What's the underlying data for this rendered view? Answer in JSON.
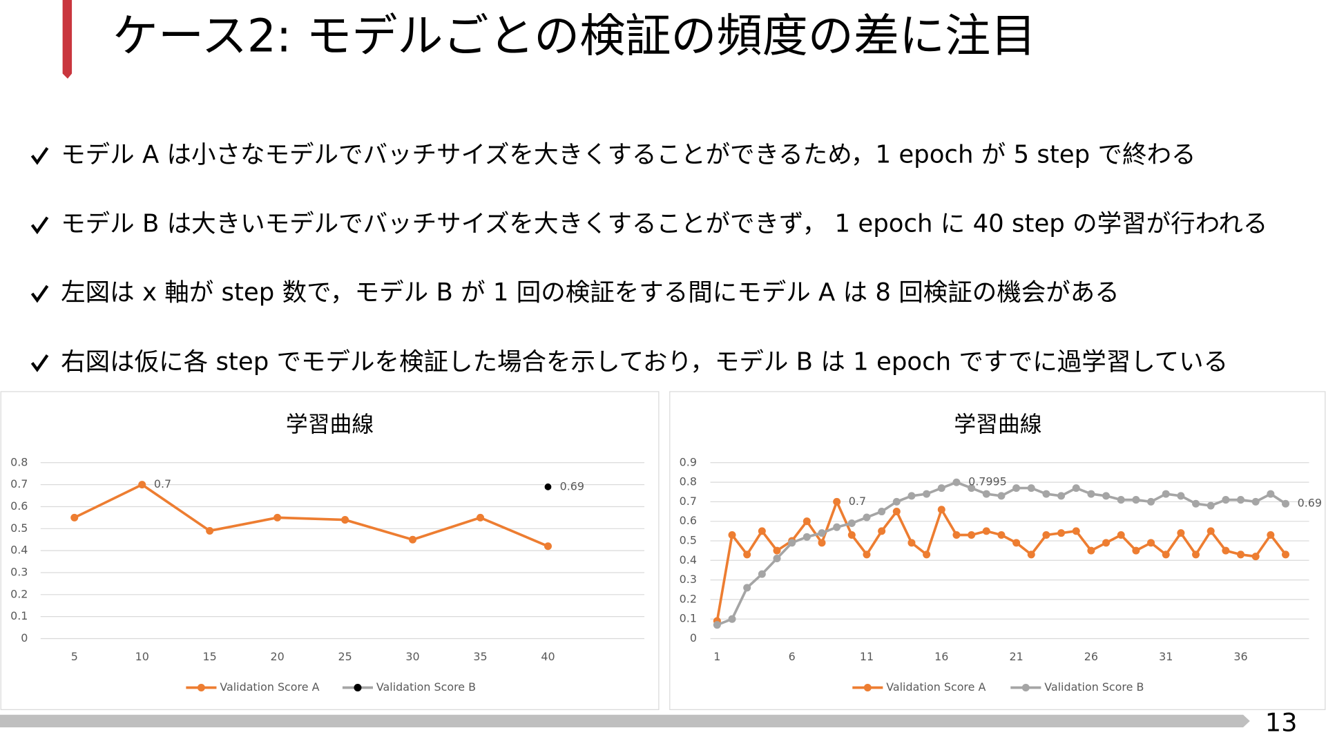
{
  "title": "ケース2: モデルごとの検証の頻度の差に注目",
  "bullets": [
    "モデル A は小さなモデルでバッチサイズを大きくすることができるため，1 epoch が 5 step で終わる",
    "モデル B は大きいモデルでバッチサイズを大きくすることができず，  1 epoch に 40 step の学習が行われる",
    "左図は x 軸が step 数で，モデル B が 1 回の検証をする間にモデル A は 8 回検証の機会がある",
    "右図は仮に各 step でモデルを検証した場合を示しており，モデル B は 1 epoch ですでに過学習している"
  ],
  "page_number": "13",
  "chart_data": [
    {
      "type": "line",
      "title": "学習曲線",
      "categories": [
        5,
        10,
        15,
        20,
        25,
        30,
        35,
        40
      ],
      "series": [
        {
          "name": "Validation Score A",
          "color": "#ed7d31",
          "values": [
            0.55,
            0.7,
            0.49,
            0.55,
            0.54,
            0.45,
            0.55,
            0.42
          ],
          "labeled": [
            1
          ]
        },
        {
          "name": "Validation Score B",
          "color": "#a5a5a5",
          "marker_color": "#000000",
          "values": [
            null,
            null,
            null,
            null,
            null,
            null,
            null,
            0.69
          ],
          "labeled": [
            7
          ]
        }
      ],
      "ylim": [
        0,
        0.8
      ],
      "yticks": [
        0,
        0.1,
        0.2,
        0.3,
        0.4,
        0.5,
        0.6,
        0.7,
        0.8
      ],
      "grid": true,
      "legend": "bottom"
    },
    {
      "type": "line",
      "title": "学習曲線",
      "categories": [
        1,
        null,
        null,
        null,
        null,
        6,
        null,
        null,
        null,
        null,
        11,
        null,
        null,
        null,
        null,
        16,
        null,
        null,
        null,
        null,
        21,
        null,
        null,
        null,
        null,
        26,
        null,
        null,
        null,
        null,
        31,
        null,
        null,
        null,
        null,
        36,
        null,
        null,
        null
      ],
      "series": [
        {
          "name": "Validation Score A",
          "color": "#ed7d31",
          "values": [
            0.09,
            0.53,
            0.43,
            0.55,
            0.45,
            0.5,
            0.6,
            0.49,
            0.7,
            0.53,
            0.43,
            0.55,
            0.65,
            0.49,
            0.43,
            0.66,
            0.53,
            0.53,
            0.55,
            0.53,
            0.49,
            0.43,
            0.53,
            0.54,
            0.55,
            0.45,
            0.49,
            0.53,
            0.45,
            0.49,
            0.43,
            0.54,
            0.43,
            0.55,
            0.45,
            0.43,
            0.42,
            0.53,
            0.43
          ],
          "labeled": [
            8
          ]
        },
        {
          "name": "Validation Score B",
          "color": "#a5a5a5",
          "values": [
            0.07,
            0.1,
            0.26,
            0.33,
            0.41,
            0.49,
            0.52,
            0.54,
            0.57,
            0.59,
            0.62,
            0.65,
            0.7,
            0.73,
            0.74,
            0.77,
            0.7995,
            0.77,
            0.74,
            0.73,
            0.77,
            0.77,
            0.74,
            0.73,
            0.77,
            0.74,
            0.73,
            0.71,
            0.71,
            0.7,
            0.74,
            0.73,
            0.69,
            0.68,
            0.71,
            0.71,
            0.7,
            0.74,
            0.69
          ],
          "labeled": [
            16,
            38
          ]
        }
      ],
      "ylim": [
        0,
        0.9
      ],
      "yticks": [
        0,
        0.1,
        0.2,
        0.3,
        0.4,
        0.5,
        0.6,
        0.7,
        0.8,
        0.9
      ],
      "grid": true,
      "legend": "bottom"
    }
  ]
}
